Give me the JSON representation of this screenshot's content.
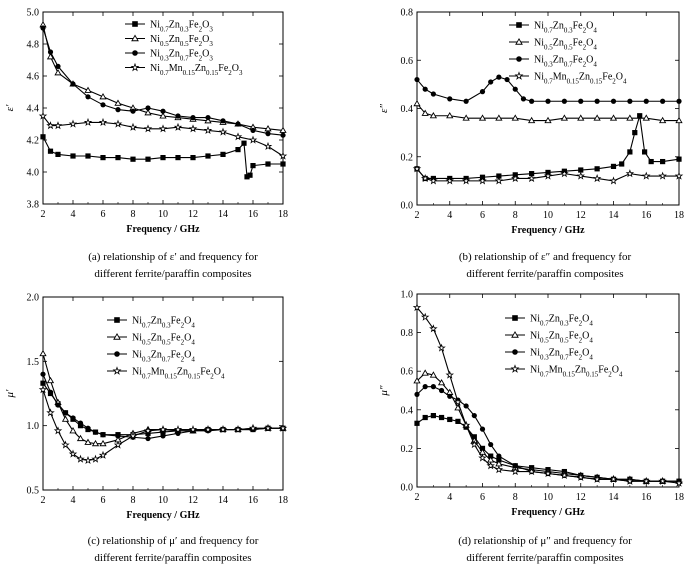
{
  "chart_data": [
    {
      "type": "line",
      "ylabel": "ε′",
      "xlabel": "Frequency / GHz",
      "xlim": [
        2,
        18
      ],
      "ylim": [
        3.8,
        5.0
      ],
      "xticks": [
        2,
        4,
        6,
        8,
        10,
        12,
        14,
        16,
        18
      ],
      "yticks": [
        3.8,
        4.0,
        4.2,
        4.4,
        4.6,
        4.8,
        5.0
      ],
      "legend_position": "top-right",
      "caption": [
        "(a) relationship of ε′ and frequency for",
        "different ferrite/paraffin composites"
      ],
      "series": [
        {
          "name": "Ni0.7Zn0.3Fe2O3",
          "marker": "square",
          "x": [
            2,
            2.5,
            3,
            4,
            5,
            6,
            7,
            8,
            9,
            10,
            11,
            12,
            13,
            14,
            15,
            15.4,
            15.6,
            15.8,
            16,
            17,
            18
          ],
          "y": [
            4.22,
            4.13,
            4.11,
            4.1,
            4.1,
            4.09,
            4.09,
            4.08,
            4.08,
            4.09,
            4.09,
            4.09,
            4.1,
            4.11,
            4.14,
            4.18,
            3.97,
            3.98,
            4.04,
            4.05,
            4.05
          ]
        },
        {
          "name": "Ni0.5Zn0.5Fe2O3",
          "marker": "triangle",
          "x": [
            2,
            2.5,
            3,
            4,
            5,
            6,
            7,
            8,
            9,
            10,
            11,
            12,
            13,
            14,
            15,
            16,
            17,
            18
          ],
          "y": [
            4.92,
            4.72,
            4.62,
            4.55,
            4.51,
            4.47,
            4.43,
            4.4,
            4.37,
            4.35,
            4.34,
            4.33,
            4.32,
            4.31,
            4.3,
            4.28,
            4.27,
            4.26
          ]
        },
        {
          "name": "Ni0.3Zn0.7Fe2O3",
          "marker": "circle",
          "x": [
            2,
            2.5,
            3,
            4,
            5,
            6,
            7,
            8,
            9,
            10,
            11,
            12,
            13,
            14,
            15,
            16,
            17,
            18
          ],
          "y": [
            4.9,
            4.75,
            4.66,
            4.55,
            4.47,
            4.42,
            4.39,
            4.38,
            4.4,
            4.38,
            4.35,
            4.34,
            4.34,
            4.32,
            4.3,
            4.26,
            4.24,
            4.23
          ]
        },
        {
          "name": "Ni0.7Mn0.15Zn0.15Fe2O3",
          "marker": "star",
          "x": [
            2,
            2.5,
            3,
            4,
            5,
            6,
            7,
            8,
            9,
            10,
            11,
            12,
            13,
            14,
            15,
            16,
            17,
            18
          ],
          "y": [
            4.35,
            4.29,
            4.29,
            4.3,
            4.31,
            4.31,
            4.3,
            4.28,
            4.27,
            4.27,
            4.28,
            4.27,
            4.26,
            4.25,
            4.22,
            4.2,
            4.16,
            4.1
          ]
        }
      ]
    },
    {
      "type": "line",
      "ylabel": "ε″",
      "xlabel": "Frequency / GHz",
      "xlim": [
        2,
        18
      ],
      "ylim": [
        0.0,
        0.8
      ],
      "xticks": [
        2,
        4,
        6,
        8,
        10,
        12,
        14,
        16,
        18
      ],
      "yticks": [
        0.0,
        0.2,
        0.4,
        0.6,
        0.8
      ],
      "legend_position": "top-right",
      "caption": [
        "(b) relationship of ε″ and frequency for",
        "different ferrite/paraffin composites"
      ],
      "series": [
        {
          "name": "Ni0.7Zn0.3Fe2O4",
          "marker": "square",
          "x": [
            2,
            2.5,
            3,
            4,
            5,
            6,
            7,
            8,
            9,
            10,
            11,
            12,
            13,
            14,
            14.5,
            15,
            15.3,
            15.6,
            15.9,
            16.3,
            17,
            18
          ],
          "y": [
            0.15,
            0.11,
            0.11,
            0.11,
            0.11,
            0.115,
            0.12,
            0.125,
            0.13,
            0.135,
            0.14,
            0.145,
            0.15,
            0.16,
            0.17,
            0.22,
            0.3,
            0.37,
            0.22,
            0.18,
            0.18,
            0.19
          ]
        },
        {
          "name": "Ni0.5Zn0.5Fe2O4",
          "marker": "triangle",
          "x": [
            2,
            2.5,
            3,
            4,
            5,
            6,
            7,
            8,
            9,
            10,
            11,
            12,
            13,
            14,
            15,
            16,
            17,
            18
          ],
          "y": [
            0.42,
            0.38,
            0.37,
            0.37,
            0.36,
            0.36,
            0.36,
            0.36,
            0.35,
            0.35,
            0.36,
            0.36,
            0.36,
            0.36,
            0.36,
            0.36,
            0.35,
            0.35
          ]
        },
        {
          "name": "Ni0.3Zn0.7Fe2O4",
          "marker": "circle",
          "x": [
            2,
            2.5,
            3,
            4,
            5,
            6,
            6.5,
            7,
            7.5,
            8,
            8.5,
            9,
            10,
            11,
            12,
            13,
            14,
            15,
            16,
            17,
            18
          ],
          "y": [
            0.52,
            0.48,
            0.46,
            0.44,
            0.43,
            0.47,
            0.51,
            0.53,
            0.52,
            0.48,
            0.44,
            0.43,
            0.43,
            0.43,
            0.43,
            0.43,
            0.43,
            0.43,
            0.43,
            0.43,
            0.43
          ]
        },
        {
          "name": "Ni0.7Mn0.15Zn0.15Fe2O4",
          "marker": "star",
          "x": [
            2,
            2.5,
            3,
            4,
            5,
            6,
            7,
            8,
            9,
            10,
            11,
            12,
            13,
            14,
            15,
            16,
            17,
            18
          ],
          "y": [
            0.15,
            0.11,
            0.1,
            0.1,
            0.1,
            0.1,
            0.1,
            0.11,
            0.11,
            0.12,
            0.13,
            0.12,
            0.11,
            0.1,
            0.13,
            0.12,
            0.12,
            0.12
          ]
        }
      ]
    },
    {
      "type": "line",
      "ylabel": "μ′",
      "xlabel": "Frequency / GHz",
      "xlim": [
        2,
        18
      ],
      "ylim": [
        0.5,
        2.0
      ],
      "xticks": [
        2,
        4,
        6,
        8,
        10,
        12,
        14,
        16,
        18
      ],
      "yticks": [
        0.5,
        1.0,
        1.5,
        2.0
      ],
      "legend_position": "top-right",
      "caption": [
        "(c) relationship of μ′ and frequency for",
        "different ferrite/paraffin composites"
      ],
      "series": [
        {
          "name": "Ni0.7Zn0.3Fe2O4",
          "marker": "square",
          "x": [
            2,
            2.5,
            3,
            3.5,
            4,
            4.5,
            5,
            5.5,
            6,
            7,
            8,
            9,
            10,
            11,
            12,
            13,
            14,
            15,
            16,
            17,
            18
          ],
          "y": [
            1.33,
            1.25,
            1.17,
            1.1,
            1.05,
            1.0,
            0.97,
            0.95,
            0.93,
            0.93,
            0.93,
            0.94,
            0.95,
            0.96,
            0.96,
            0.97,
            0.97,
            0.97,
            0.97,
            0.98,
            0.98
          ]
        },
        {
          "name": "Ni0.5Zn0.5Fe2O4",
          "marker": "triangle",
          "x": [
            2,
            2.5,
            3,
            3.5,
            4,
            4.5,
            5,
            5.5,
            6,
            7,
            8,
            9,
            10,
            11,
            12,
            13,
            14,
            15,
            16,
            17,
            18
          ],
          "y": [
            1.56,
            1.35,
            1.18,
            1.05,
            0.96,
            0.9,
            0.87,
            0.86,
            0.86,
            0.89,
            0.94,
            0.97,
            0.97,
            0.96,
            0.96,
            0.97,
            0.97,
            0.97,
            0.98,
            0.98,
            0.98
          ]
        },
        {
          "name": "Ni0.3Zn0.7Fe2O4",
          "marker": "circle",
          "x": [
            2,
            2.5,
            3,
            3.5,
            4,
            4.5,
            5,
            5.5,
            6,
            7,
            8,
            9,
            10,
            11,
            12,
            13,
            14,
            15,
            16,
            17,
            18
          ],
          "y": [
            1.4,
            1.26,
            1.16,
            1.1,
            1.06,
            1.02,
            0.98,
            0.95,
            0.93,
            0.92,
            0.91,
            0.9,
            0.92,
            0.94,
            0.96,
            0.96,
            0.97,
            0.97,
            0.97,
            0.98,
            0.98
          ]
        },
        {
          "name": "Ni0.7Mn0.15Zn0.15Fe2O4",
          "marker": "star",
          "x": [
            2,
            2.5,
            3,
            3.5,
            4,
            4.5,
            5,
            5.5,
            6,
            7,
            8,
            9,
            10,
            11,
            12,
            13,
            14,
            15,
            16,
            17,
            18
          ],
          "y": [
            1.28,
            1.1,
            0.96,
            0.85,
            0.78,
            0.74,
            0.73,
            0.74,
            0.77,
            0.85,
            0.92,
            0.96,
            0.97,
            0.97,
            0.97,
            0.97,
            0.97,
            0.97,
            0.98,
            0.98,
            0.98
          ]
        }
      ]
    },
    {
      "type": "line",
      "ylabel": "μ″",
      "xlabel": "Frequency / GHz",
      "xlim": [
        2,
        18
      ],
      "ylim": [
        0.0,
        1.0
      ],
      "xticks": [
        2,
        4,
        6,
        8,
        10,
        12,
        14,
        16,
        18
      ],
      "yticks": [
        0.0,
        0.2,
        0.4,
        0.6,
        0.8,
        1.0
      ],
      "legend_position": "top-right",
      "caption": [
        "(d) relationship of μ″ and frequency for",
        "different ferrite/paraffin composites"
      ],
      "series": [
        {
          "name": "Ni0.7Zn0.3Fe2O4",
          "marker": "square",
          "x": [
            2,
            2.5,
            3,
            3.5,
            4,
            4.5,
            5,
            5.5,
            6,
            6.5,
            7,
            8,
            9,
            10,
            11,
            12,
            13,
            14,
            15,
            16,
            17,
            18
          ],
          "y": [
            0.33,
            0.36,
            0.37,
            0.36,
            0.35,
            0.34,
            0.31,
            0.26,
            0.2,
            0.16,
            0.14,
            0.11,
            0.1,
            0.09,
            0.08,
            0.06,
            0.05,
            0.04,
            0.04,
            0.03,
            0.03,
            0.03
          ]
        },
        {
          "name": "Ni0.5Zn0.5Fe2O4",
          "marker": "triangle",
          "x": [
            2,
            2.5,
            3,
            3.5,
            4,
            4.5,
            5,
            5.5,
            6,
            6.5,
            7,
            8,
            9,
            10,
            11,
            12,
            13,
            14,
            15,
            16,
            17,
            18
          ],
          "y": [
            0.55,
            0.59,
            0.58,
            0.54,
            0.49,
            0.41,
            0.32,
            0.24,
            0.18,
            0.14,
            0.12,
            0.1,
            0.09,
            0.08,
            0.07,
            0.06,
            0.05,
            0.04,
            0.04,
            0.03,
            0.03,
            0.03
          ]
        },
        {
          "name": "Ni0.3Zn0.7Fe2O4",
          "marker": "circle",
          "x": [
            2,
            2.5,
            3,
            3.5,
            4,
            4.5,
            5,
            5.5,
            6,
            6.5,
            7,
            8,
            9,
            10,
            11,
            12,
            13,
            14,
            15,
            16,
            17,
            18
          ],
          "y": [
            0.48,
            0.52,
            0.52,
            0.5,
            0.47,
            0.45,
            0.42,
            0.37,
            0.3,
            0.22,
            0.16,
            0.11,
            0.08,
            0.07,
            0.06,
            0.05,
            0.04,
            0.04,
            0.03,
            0.03,
            0.03,
            0.03
          ]
        },
        {
          "name": "Ni0.7Mn0.15Zn0.15Fe2O4",
          "marker": "star",
          "x": [
            2,
            2.5,
            3,
            3.5,
            4,
            4.5,
            5,
            5.5,
            6,
            6.5,
            7,
            8,
            9,
            10,
            11,
            12,
            13,
            14,
            15,
            16,
            17,
            18
          ],
          "y": [
            0.93,
            0.88,
            0.82,
            0.72,
            0.58,
            0.44,
            0.32,
            0.22,
            0.15,
            0.11,
            0.09,
            0.08,
            0.08,
            0.07,
            0.06,
            0.05,
            0.04,
            0.04,
            0.03,
            0.03,
            0.03,
            0.02
          ]
        }
      ]
    }
  ]
}
